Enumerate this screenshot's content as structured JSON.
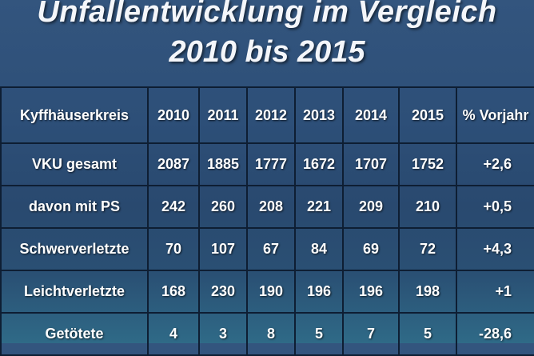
{
  "title_line1": "Unfallentwicklung im Vergleich",
  "title_line2": "2010 bis 2015",
  "chart_data": {
    "type": "table",
    "columns": [
      "Kyffhäuserkreis",
      "2010",
      "2011",
      "2012",
      "2013",
      "2014",
      "2015",
      "% Vorjahr"
    ],
    "rows": [
      {
        "label": "VKU gesamt",
        "values": [
          "2087",
          "1885",
          "1777",
          "1672",
          "1707",
          "1752"
        ],
        "change": "+2,6"
      },
      {
        "label": "davon mit PS",
        "values": [
          "242",
          "260",
          "208",
          "221",
          "209",
          "210"
        ],
        "change": "+0,5"
      },
      {
        "label": "Schwerverletzte",
        "values": [
          "70",
          "107",
          "67",
          "84",
          "69",
          "72"
        ],
        "change": "+4,3"
      },
      {
        "label": "Leichtverletzte",
        "values": [
          "168",
          "230",
          "190",
          "196",
          "196",
          "198"
        ],
        "change": "+1"
      },
      {
        "label": "Getötete",
        "values": [
          "4",
          "3",
          "8",
          "5",
          "7",
          "5"
        ],
        "change": "-28,6"
      }
    ]
  }
}
